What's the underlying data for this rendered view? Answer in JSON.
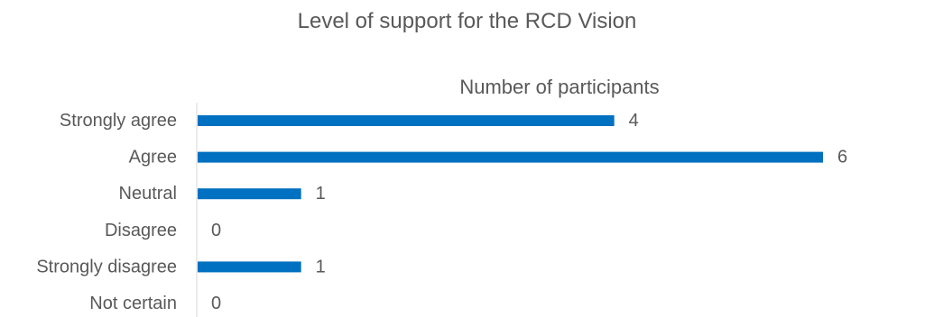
{
  "chart_data": {
    "type": "bar",
    "orientation": "horizontal",
    "title": "Level of support for the RCD Vision",
    "xlabel": "Number of participants",
    "ylabel": "",
    "categories": [
      "Strongly agree",
      "Agree",
      "Neutral",
      "Disagree",
      "Strongly disagree",
      "Not certain"
    ],
    "values": [
      4,
      6,
      1,
      0,
      1,
      0
    ],
    "xlim": [
      0,
      6
    ],
    "grid": false,
    "legend": "none",
    "data_labels": true,
    "colors": {
      "bar": "#0070C0",
      "text": "#595959",
      "axis": "#D9D9D9"
    }
  }
}
